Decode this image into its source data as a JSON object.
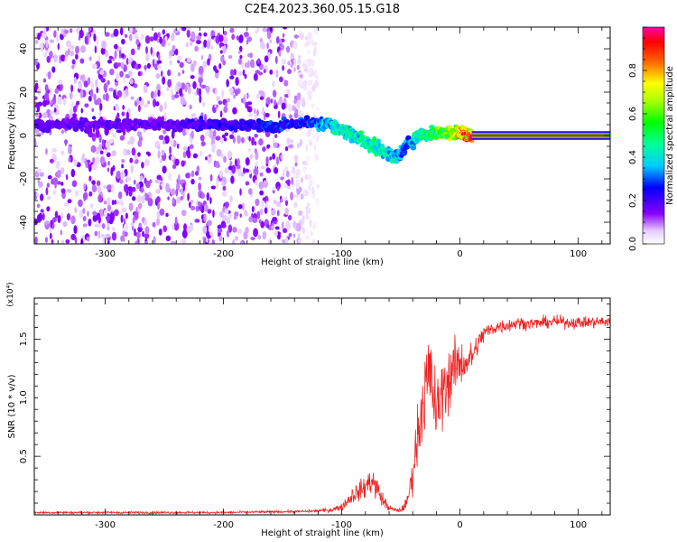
{
  "figure_title": "C2E4.2023.360.05.15.G18",
  "chart_data": [
    {
      "type": "heatmap",
      "xlabel": "Height of straight line (km)",
      "ylabel": "Frequency (Hz)",
      "xlim": [
        -360,
        127
      ],
      "ylim": [
        -50,
        50
      ],
      "x_ticks": [
        -300,
        -200,
        -100,
        0,
        100
      ],
      "x_tick_labels": [
        "-300",
        "-200",
        "-100",
        "0",
        "100"
      ],
      "y_ticks": [
        -40,
        -20,
        0,
        20,
        40
      ],
      "y_tick_labels": [
        "-40",
        "-20",
        "0",
        "20",
        "40"
      ],
      "colorbar": {
        "label": "Normalized spectral amplitude",
        "range": [
          0,
          1
        ],
        "ticks": [
          0,
          0.2,
          0.4,
          0.6,
          0.8
        ],
        "tick_labels": [
          "0.0",
          "0.2",
          "0.4",
          "0.6",
          "0.8"
        ],
        "colormap": "rainbow (white-violet-blue-cyan-green-yellow-red-magenta)"
      },
      "noise_region_x": [
        -360,
        -120
      ],
      "ridge": {
        "x": [
          -360,
          -300,
          -250,
          -200,
          -160,
          -130,
          -110,
          -90,
          -70,
          -55,
          -45,
          -35,
          -25,
          -10,
          0,
          10,
          127
        ],
        "frequency": [
          5,
          5,
          5,
          5,
          4,
          6,
          5,
          0,
          -6,
          -10,
          -5,
          0,
          1,
          1,
          1,
          0,
          0
        ],
        "amplitude": [
          0.2,
          0.2,
          0.2,
          0.25,
          0.3,
          0.3,
          0.45,
          0.5,
          0.5,
          0.45,
          0.35,
          0.5,
          0.6,
          0.7,
          0.85,
          0.95,
          0.95
        ]
      },
      "grid": false
    },
    {
      "type": "line",
      "xlabel": "Height of straight line (km)",
      "ylabel": "SNR (10 * v/v)",
      "y_multiplier": "(x10⁴)",
      "xlim": [
        -360,
        127
      ],
      "ylim": [
        0,
        1.85
      ],
      "x_ticks": [
        -300,
        -200,
        -100,
        0,
        100
      ],
      "x_tick_labels": [
        "-300",
        "-200",
        "-100",
        "0",
        "100"
      ],
      "y_ticks": [
        0.5,
        1.0,
        1.5
      ],
      "y_tick_labels": [
        "0.5",
        "1.0",
        "1.5"
      ],
      "series": [
        {
          "color": "#ee2222",
          "x": [
            -360,
            -300,
            -200,
            -130,
            -110,
            -100,
            -95,
            -90,
            -85,
            -80,
            -75,
            -70,
            -65,
            -60,
            -55,
            -50,
            -45,
            -40,
            -35,
            -30,
            -25,
            -20,
            -15,
            -10,
            -5,
            0,
            5,
            10,
            20,
            30,
            40,
            50,
            60,
            80,
            100,
            127
          ],
          "y": [
            0.02,
            0.02,
            0.02,
            0.03,
            0.04,
            0.07,
            0.12,
            0.18,
            0.2,
            0.24,
            0.3,
            0.22,
            0.12,
            0.06,
            0.04,
            0.04,
            0.1,
            0.35,
            0.75,
            1.05,
            1.2,
            0.85,
            1.05,
            1.15,
            1.25,
            1.3,
            1.3,
            1.35,
            1.55,
            1.6,
            1.62,
            1.64,
            1.63,
            1.65,
            1.64,
            1.65
          ],
          "noise": [
            0.01,
            0.01,
            0.01,
            0.01,
            0.02,
            0.03,
            0.05,
            0.08,
            0.08,
            0.1,
            0.12,
            0.1,
            0.06,
            0.03,
            0.02,
            0.02,
            0.05,
            0.15,
            0.3,
            0.35,
            0.4,
            0.3,
            0.3,
            0.28,
            0.25,
            0.2,
            0.15,
            0.12,
            0.08,
            0.06,
            0.06,
            0.05,
            0.05,
            0.05,
            0.05,
            0.05
          ]
        }
      ],
      "grid": false
    }
  ]
}
